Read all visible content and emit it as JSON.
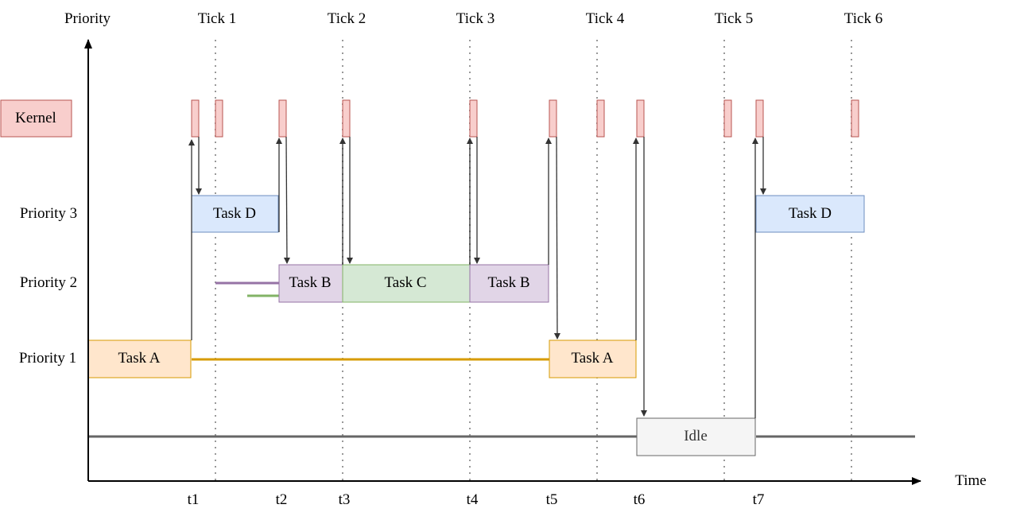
{
  "axes": {
    "y_label": "Priority",
    "x_label": "Time"
  },
  "ticks": [
    "Tick 1",
    "Tick 2",
    "Tick 3",
    "Tick 4",
    "Tick 5",
    "Tick 6"
  ],
  "time_markers": [
    "t1",
    "t2",
    "t3",
    "t4",
    "t5",
    "t6",
    "t7"
  ],
  "rows": {
    "kernel": "Kernel",
    "priority3": "Priority 3",
    "priority2": "Priority 2",
    "priority1": "Priority 1"
  },
  "tasks": {
    "task_d_1": "Task D",
    "task_b_1": "Task B",
    "task_c": "Task C",
    "task_b_2": "Task B",
    "task_a_1": "Task A",
    "task_a_2": "Task A",
    "idle": "Idle",
    "task_d_2": "Task D"
  },
  "colors": {
    "kernel_fill": "#f8cecc",
    "kernel_stroke": "#b85450",
    "task_d_fill": "#dae8fc",
    "task_d_stroke": "#6c8ebf",
    "task_b_fill": "#e1d5e7",
    "task_b_stroke": "#9673a6",
    "task_c_fill": "#d5e8d4",
    "task_c_stroke": "#82b366",
    "task_a_fill": "#ffe6cc",
    "task_a_stroke": "#d79b00",
    "idle_fill": "#f5f5f5",
    "idle_stroke": "#666666",
    "task_a_wait_line": "#d79b00",
    "task_b_wait_line": "#9673a6",
    "task_c_wait_line": "#82b366",
    "idle_line": "#666666"
  }
}
